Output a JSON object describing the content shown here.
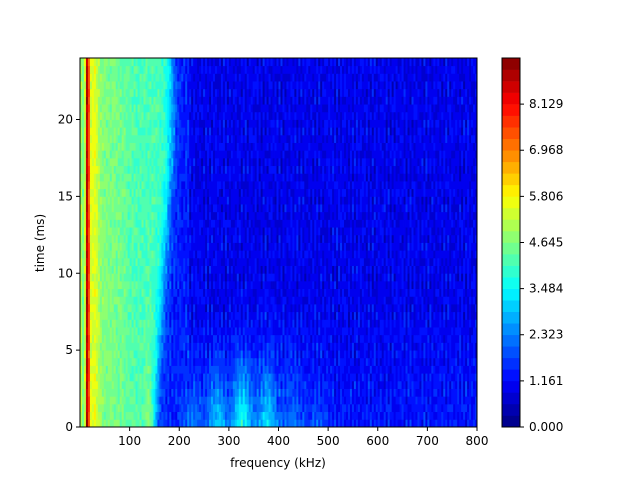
{
  "chart_data": {
    "type": "heatmap",
    "title": "",
    "xlabel": "frequency (kHz)",
    "ylabel": "time (ms)",
    "xlim": [
      0,
      800
    ],
    "ylim": [
      0,
      24
    ],
    "x_ticks": [
      100,
      200,
      300,
      400,
      500,
      600,
      700,
      800
    ],
    "y_ticks": [
      0,
      5,
      10,
      15,
      20
    ],
    "colormap": "jet",
    "colorbar": {
      "range": [
        0,
        9.29
      ],
      "levels": 32,
      "tick_values": [
        0.0,
        1.161,
        2.323,
        3.484,
        4.645,
        5.806,
        6.968,
        8.129
      ],
      "tick_labels": [
        "0.000",
        "1.161",
        "2.323",
        "3.484",
        "4.645",
        "5.806",
        "6.968",
        "8.129"
      ]
    },
    "features": [
      {
        "label": "narrow peak",
        "freq_khz": 15,
        "time_ms": [
          0,
          24
        ],
        "value": 7.8
      },
      {
        "label": "broad band",
        "freq_khz": [
          0,
          180
        ],
        "time_ms": [
          0,
          24
        ],
        "value": 4.3
      },
      {
        "label": "onset hump",
        "freq_khz": [
          230,
          440
        ],
        "time_ms": [
          0,
          6
        ],
        "value": 3.0
      },
      {
        "label": "background",
        "freq_khz": [
          200,
          800
        ],
        "time_ms": [
          0,
          24
        ],
        "value": 1.4
      }
    ]
  }
}
